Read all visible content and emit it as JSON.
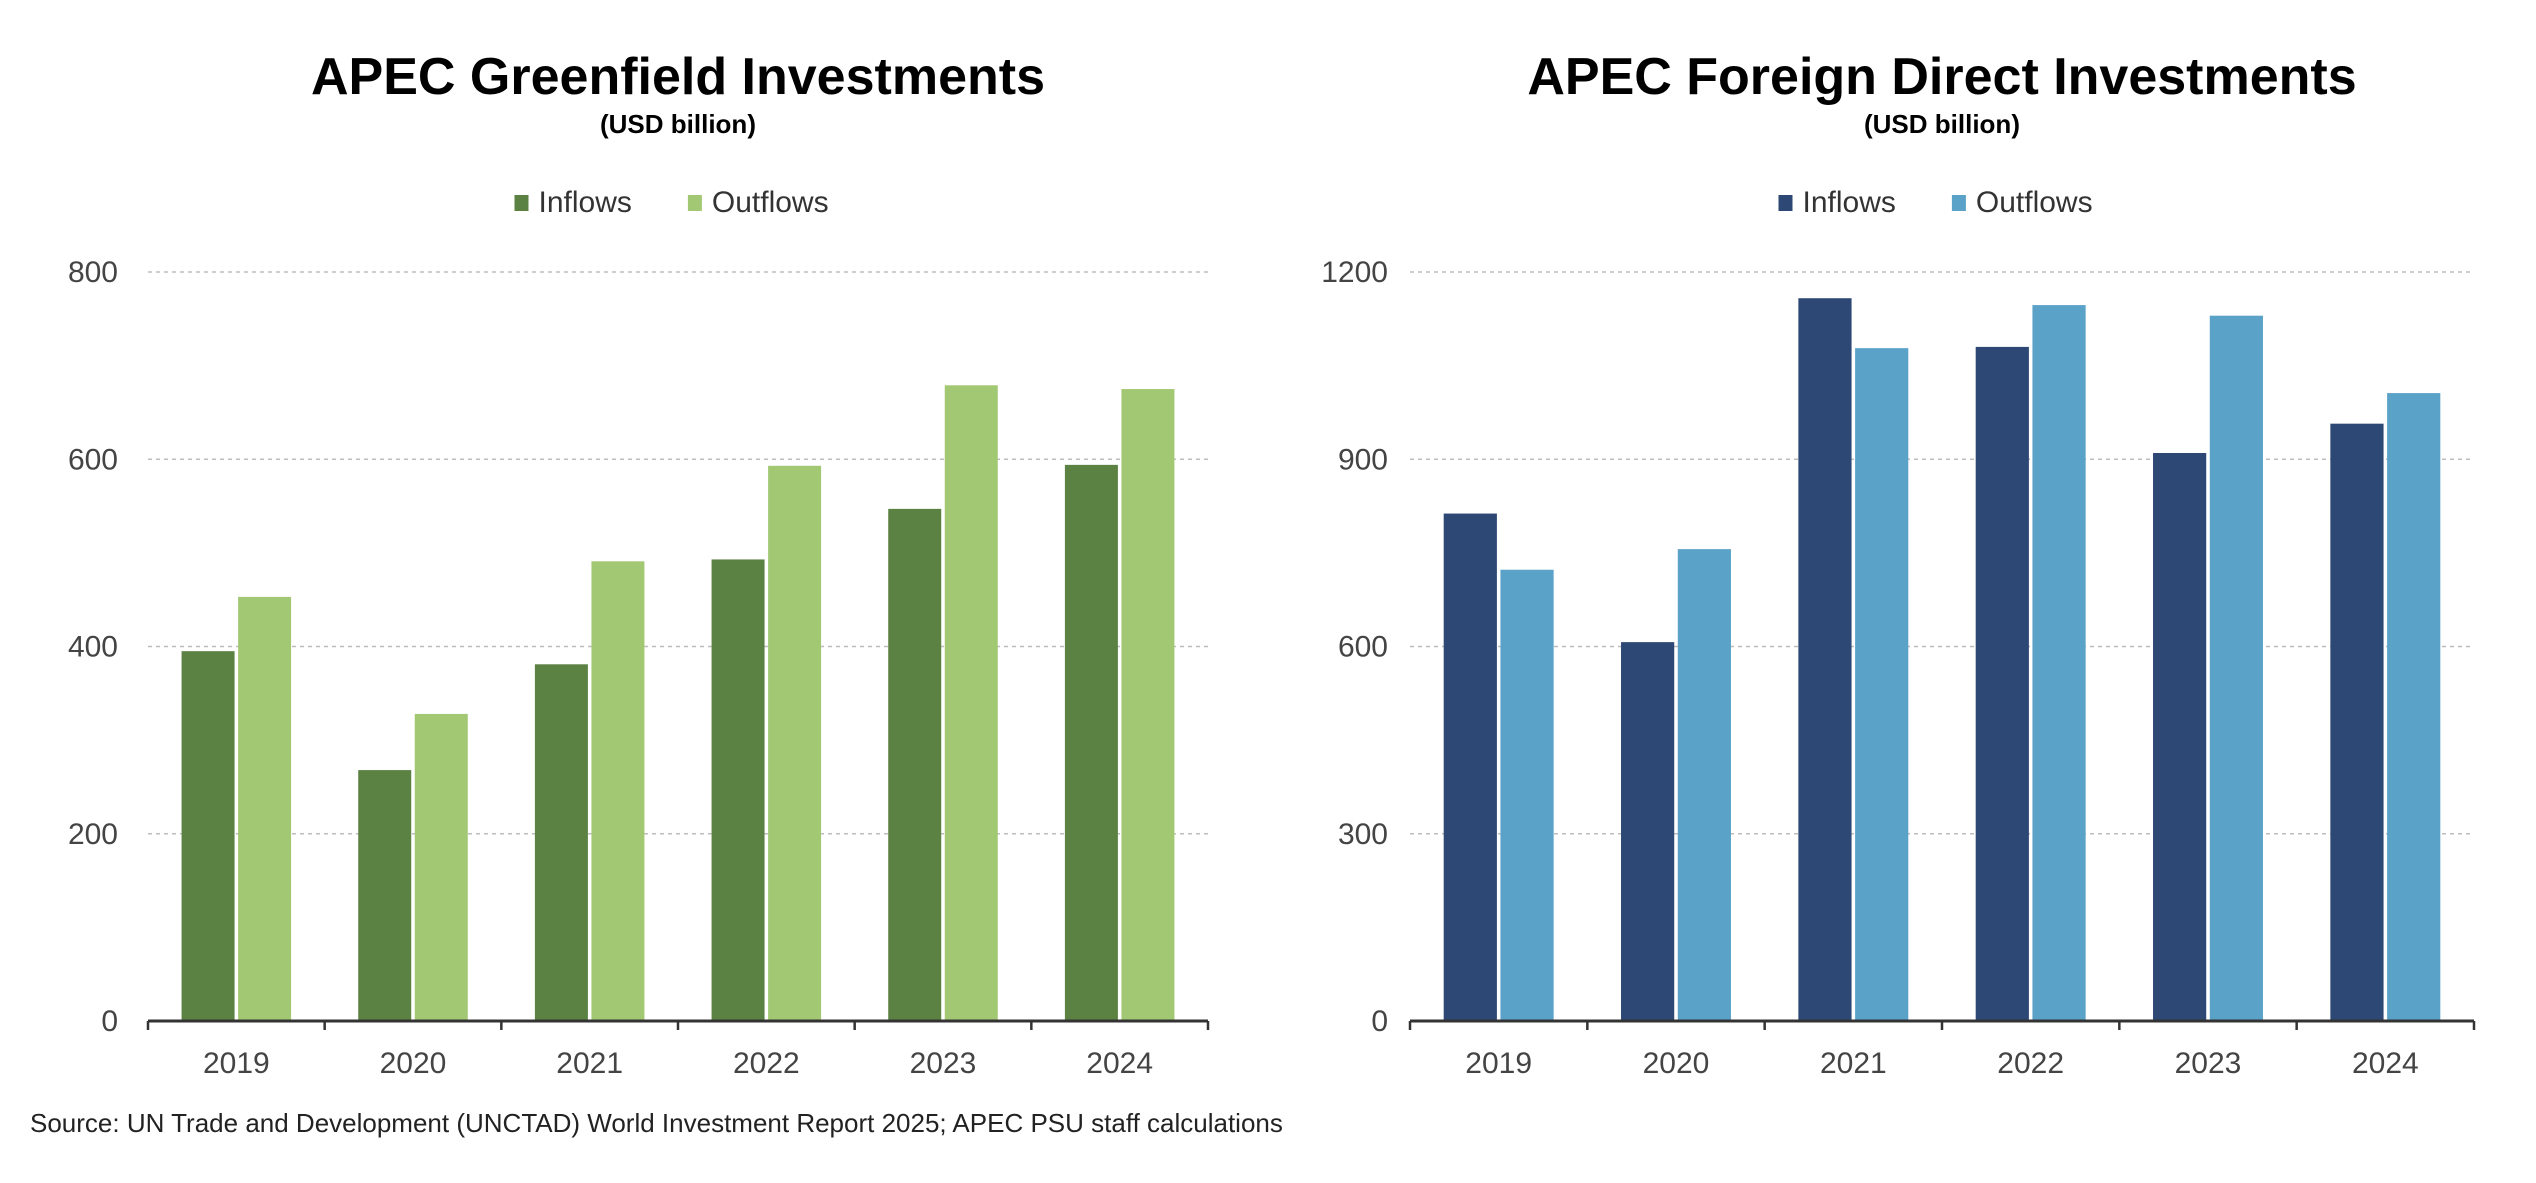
{
  "chart_data": [
    {
      "type": "bar",
      "title": "APEC Greenfield Investments",
      "subtitle": "(USD billion)",
      "categories": [
        "2019",
        "2020",
        "2021",
        "2022",
        "2023",
        "2024"
      ],
      "series": [
        {
          "name": "Inflows",
          "values": [
            395,
            268,
            381,
            493,
            547,
            594
          ],
          "color": "#5b8243"
        },
        {
          "name": "Outflows",
          "values": [
            453,
            328,
            491,
            593,
            679,
            675
          ],
          "color": "#a3c874"
        }
      ],
      "yticks": [
        "0",
        "200",
        "400",
        "600",
        "800"
      ],
      "ylim": [
        0,
        800
      ],
      "grid": true,
      "legend_position": "top-center",
      "xlabel": "",
      "ylabel": ""
    },
    {
      "type": "bar",
      "title": "APEC Foreign Direct Investments",
      "subtitle": "(USD billion)",
      "categories": [
        "2019",
        "2020",
        "2021",
        "2022",
        "2023",
        "2024"
      ],
      "series": [
        {
          "name": "Inflows",
          "values": [
            813,
            607,
            1158,
            1080,
            910,
            957
          ],
          "color": "#2d4874"
        },
        {
          "name": "Outflows",
          "values": [
            723,
            756,
            1078,
            1147,
            1130,
            1006
          ],
          "color": "#5ba2c8"
        }
      ],
      "yticks": [
        "0",
        "300",
        "600",
        "900",
        "1200"
      ],
      "ylim": [
        0,
        1200
      ],
      "grid": true,
      "legend_position": "top-center",
      "xlabel": "",
      "ylabel": ""
    }
  ],
  "source": "Source: UN Trade and Development (UNCTAD) World Investment Report 2025; APEC PSU staff calculations"
}
